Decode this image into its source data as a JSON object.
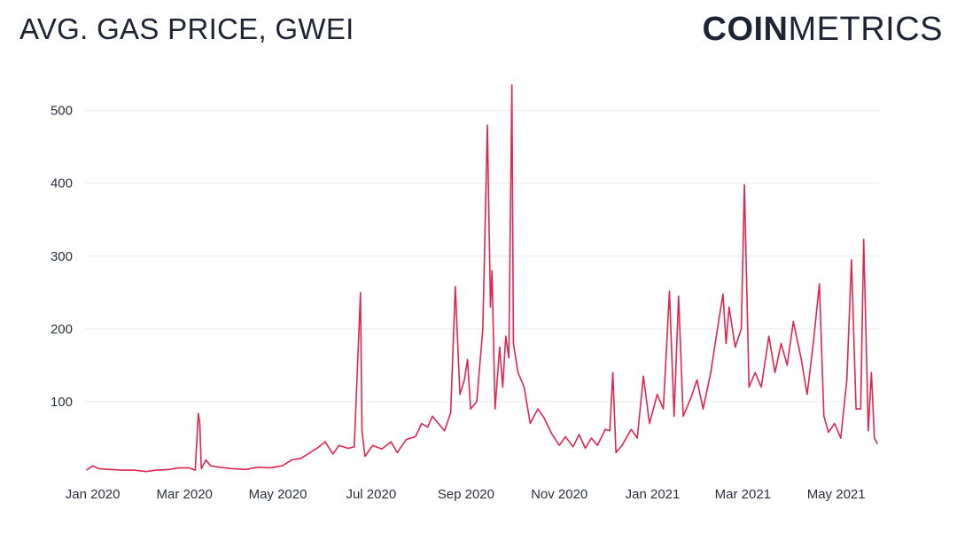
{
  "header": {
    "title": "AVG. GAS PRICE, GWEI",
    "logo_bold": "COIN",
    "logo_light": "METRICS"
  },
  "chart_data": {
    "type": "line",
    "title": "AVG. GAS PRICE, GWEI",
    "xlabel": "",
    "ylabel": "",
    "ylim": [
      0,
      530
    ],
    "x_ticks": [
      "Jan 2020",
      "Mar 2020",
      "May 2020",
      "Jul 2020",
      "Sep 2020",
      "Nov 2020",
      "Jan 2021",
      "Mar 2021",
      "May 2021"
    ],
    "y_ticks": [
      100,
      200,
      300,
      400,
      500
    ],
    "grid": "horizontal",
    "line_color": "#e0264f",
    "series": [
      {
        "name": "",
        "points": [
          [
            "2019-12-28",
            6
          ],
          [
            "2020-01-01",
            12
          ],
          [
            "2020-01-05",
            8
          ],
          [
            "2020-01-12",
            7
          ],
          [
            "2020-01-20",
            6
          ],
          [
            "2020-01-28",
            6
          ],
          [
            "2020-02-05",
            4
          ],
          [
            "2020-02-12",
            6
          ],
          [
            "2020-02-20",
            7
          ],
          [
            "2020-02-26",
            9
          ],
          [
            "2020-03-04",
            9
          ],
          [
            "2020-03-08",
            6
          ],
          [
            "2020-03-10",
            84
          ],
          [
            "2020-03-11",
            70
          ],
          [
            "2020-03-12",
            8
          ],
          [
            "2020-03-15",
            20
          ],
          [
            "2020-03-18",
            12
          ],
          [
            "2020-03-24",
            10
          ],
          [
            "2020-04-01",
            8
          ],
          [
            "2020-04-10",
            7
          ],
          [
            "2020-04-18",
            10
          ],
          [
            "2020-04-26",
            9
          ],
          [
            "2020-05-04",
            12
          ],
          [
            "2020-05-10",
            20
          ],
          [
            "2020-05-16",
            22
          ],
          [
            "2020-05-22",
            30
          ],
          [
            "2020-05-28",
            38
          ],
          [
            "2020-06-01",
            45
          ],
          [
            "2020-06-06",
            28
          ],
          [
            "2020-06-10",
            40
          ],
          [
            "2020-06-16",
            36
          ],
          [
            "2020-06-20",
            38
          ],
          [
            "2020-06-24",
            250
          ],
          [
            "2020-06-25",
            60
          ],
          [
            "2020-06-27",
            25
          ],
          [
            "2020-07-02",
            40
          ],
          [
            "2020-07-08",
            35
          ],
          [
            "2020-07-14",
            45
          ],
          [
            "2020-07-18",
            30
          ],
          [
            "2020-07-24",
            48
          ],
          [
            "2020-07-30",
            52
          ],
          [
            "2020-08-03",
            70
          ],
          [
            "2020-08-07",
            65
          ],
          [
            "2020-08-10",
            80
          ],
          [
            "2020-08-14",
            70
          ],
          [
            "2020-08-18",
            60
          ],
          [
            "2020-08-22",
            85
          ],
          [
            "2020-08-25",
            258
          ],
          [
            "2020-08-28",
            110
          ],
          [
            "2020-08-31",
            130
          ],
          [
            "2020-09-02",
            158
          ],
          [
            "2020-09-04",
            90
          ],
          [
            "2020-09-08",
            100
          ],
          [
            "2020-09-12",
            200
          ],
          [
            "2020-09-15",
            480
          ],
          [
            "2020-09-17",
            230
          ],
          [
            "2020-09-18",
            280
          ],
          [
            "2020-09-20",
            90
          ],
          [
            "2020-09-23",
            175
          ],
          [
            "2020-09-25",
            120
          ],
          [
            "2020-09-27",
            190
          ],
          [
            "2020-09-29",
            160
          ],
          [
            "2020-10-01",
            535
          ],
          [
            "2020-10-02",
            180
          ],
          [
            "2020-10-05",
            140
          ],
          [
            "2020-10-09",
            120
          ],
          [
            "2020-10-13",
            70
          ],
          [
            "2020-10-18",
            90
          ],
          [
            "2020-10-22",
            78
          ],
          [
            "2020-10-27",
            56
          ],
          [
            "2020-11-01",
            40
          ],
          [
            "2020-11-05",
            52
          ],
          [
            "2020-11-10",
            38
          ],
          [
            "2020-11-14",
            55
          ],
          [
            "2020-11-18",
            36
          ],
          [
            "2020-11-22",
            50
          ],
          [
            "2020-11-26",
            40
          ],
          [
            "2020-12-01",
            62
          ],
          [
            "2020-12-04",
            60
          ],
          [
            "2020-12-06",
            140
          ],
          [
            "2020-12-08",
            30
          ],
          [
            "2020-12-12",
            40
          ],
          [
            "2020-12-18",
            62
          ],
          [
            "2020-12-22",
            50
          ],
          [
            "2020-12-26",
            135
          ],
          [
            "2020-12-30",
            70
          ],
          [
            "2021-01-04",
            110
          ],
          [
            "2021-01-08",
            90
          ],
          [
            "2021-01-12",
            252
          ],
          [
            "2021-01-15",
            80
          ],
          [
            "2021-01-18",
            245
          ],
          [
            "2021-01-21",
            80
          ],
          [
            "2021-01-26",
            105
          ],
          [
            "2021-01-30",
            130
          ],
          [
            "2021-02-03",
            90
          ],
          [
            "2021-02-08",
            140
          ],
          [
            "2021-02-12",
            195
          ],
          [
            "2021-02-16",
            248
          ],
          [
            "2021-02-18",
            180
          ],
          [
            "2021-02-20",
            230
          ],
          [
            "2021-02-24",
            175
          ],
          [
            "2021-02-28",
            200
          ],
          [
            "2021-03-02",
            398
          ],
          [
            "2021-03-05",
            120
          ],
          [
            "2021-03-09",
            140
          ],
          [
            "2021-03-13",
            120
          ],
          [
            "2021-03-18",
            190
          ],
          [
            "2021-03-22",
            140
          ],
          [
            "2021-03-26",
            180
          ],
          [
            "2021-03-30",
            150
          ],
          [
            "2021-04-03",
            210
          ],
          [
            "2021-04-08",
            160
          ],
          [
            "2021-04-12",
            110
          ],
          [
            "2021-04-16",
            180
          ],
          [
            "2021-04-20",
            262
          ],
          [
            "2021-04-23",
            80
          ],
          [
            "2021-04-26",
            58
          ],
          [
            "2021-04-30",
            70
          ],
          [
            "2021-05-04",
            50
          ],
          [
            "2021-05-08",
            130
          ],
          [
            "2021-05-11",
            295
          ],
          [
            "2021-05-14",
            90
          ],
          [
            "2021-05-17",
            90
          ],
          [
            "2021-05-19",
            323
          ],
          [
            "2021-05-22",
            60
          ],
          [
            "2021-05-24",
            140
          ],
          [
            "2021-05-26",
            50
          ],
          [
            "2021-05-28",
            42
          ]
        ]
      }
    ]
  }
}
